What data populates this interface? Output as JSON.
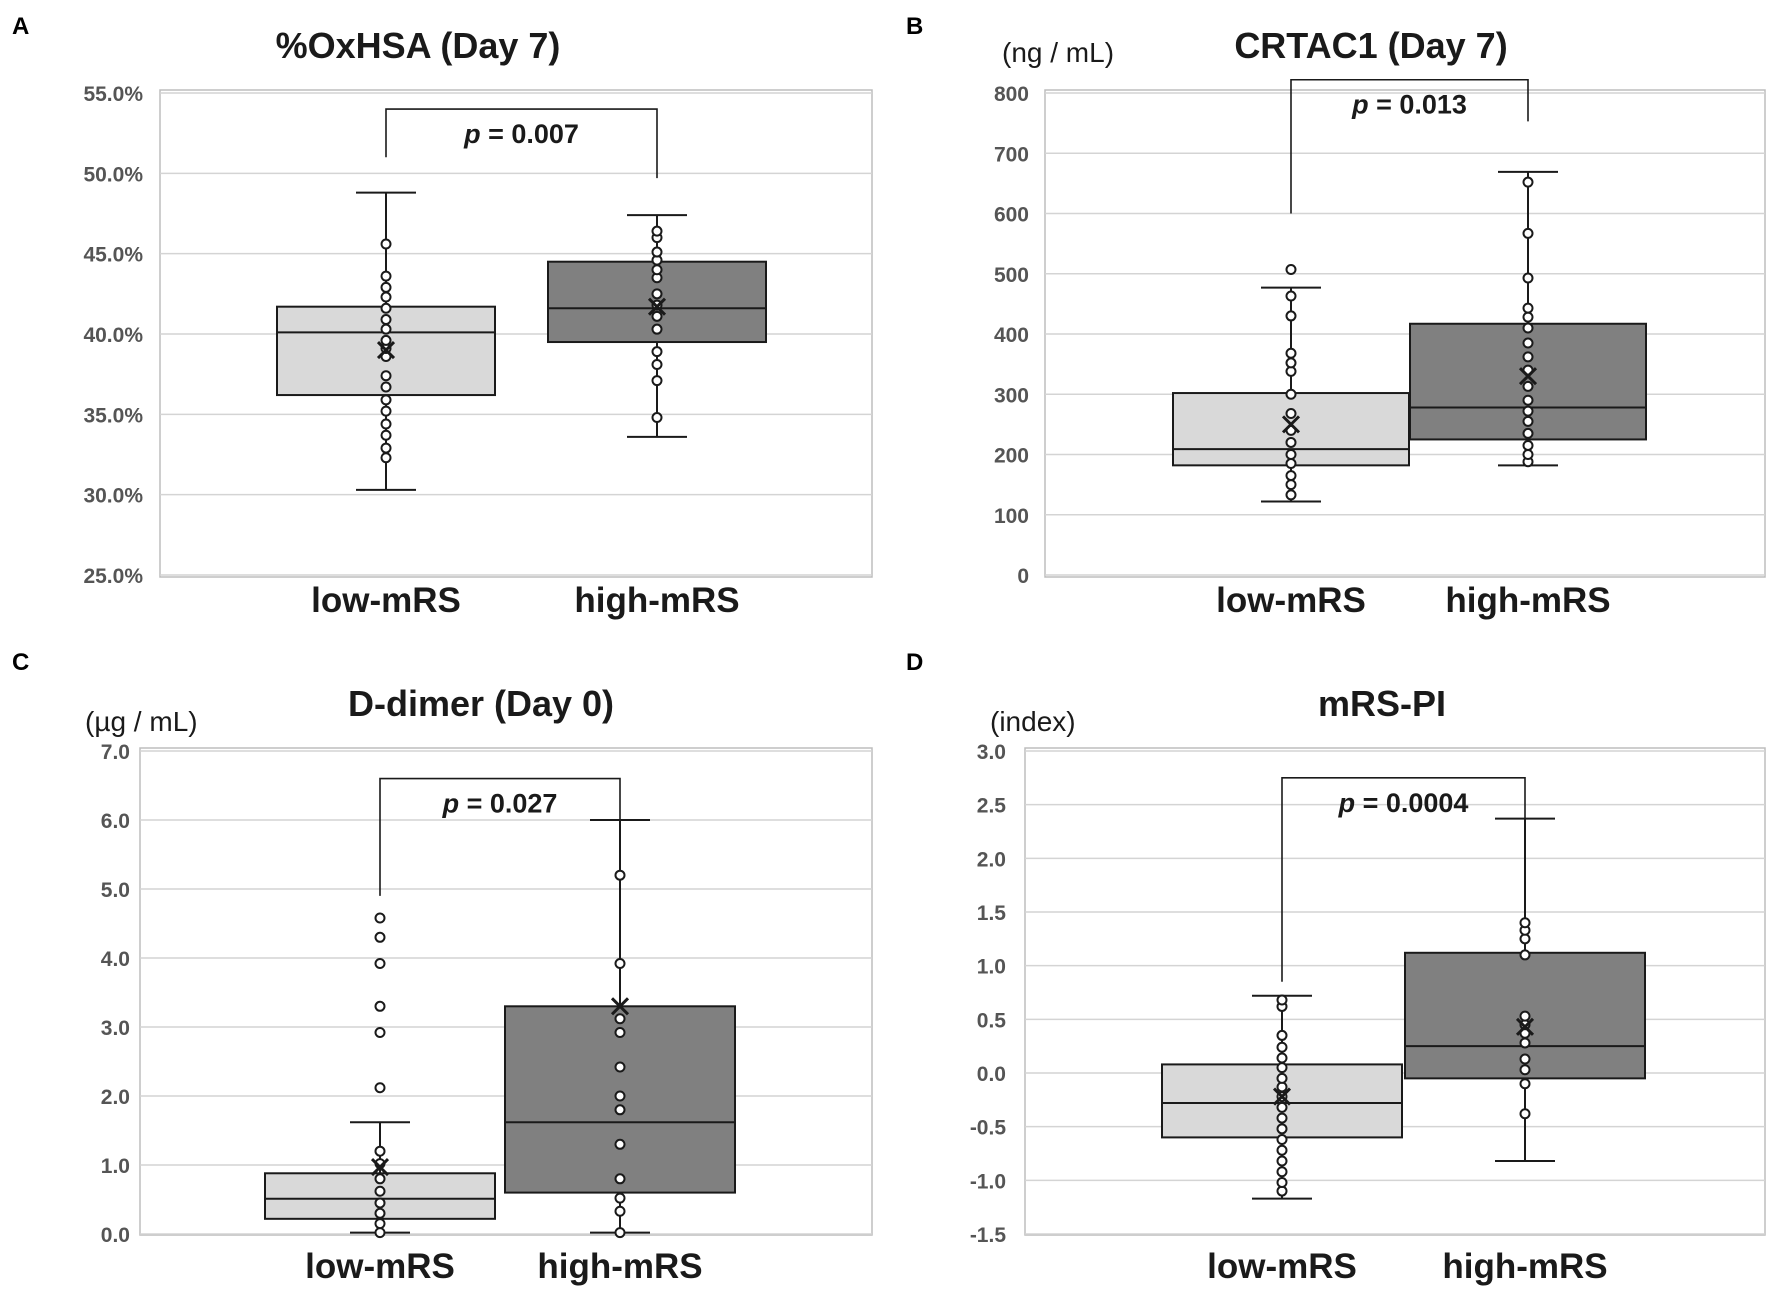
{
  "colors": {
    "low": "#d9d9d9",
    "high": "#808080",
    "ink": "#1a1a1a",
    "grid": "#d4d4d4",
    "tick": "#555555"
  },
  "chart_data": [
    {
      "panel": "A",
      "type": "box",
      "title": "%OxHSA (Day 7)",
      "unit": "",
      "categories": [
        "low-mRS",
        "high-mRS"
      ],
      "ylim": [
        25,
        55
      ],
      "ticks": [
        25,
        30,
        35,
        40,
        45,
        50,
        55
      ],
      "tick_labels": [
        "25.0%",
        "30.0%",
        "35.0%",
        "40.0%",
        "45.0%",
        "50.0%",
        "55.0%"
      ],
      "p_prefix": "p",
      "p_text": " = 0.007",
      "p_value": 0.007,
      "bracket": {
        "top": 54.0,
        "left_end": 51.0,
        "right_end": 49.7
      },
      "series": [
        {
          "name": "low-mRS",
          "min": 30.3,
          "q1": 36.2,
          "median": 40.1,
          "q3": 41.7,
          "max": 48.8,
          "mean": 39.0,
          "points": [
            32.3,
            32.9,
            33.7,
            34.4,
            35.2,
            35.9,
            36.7,
            37.4,
            38.6,
            39.1,
            39.6,
            40.3,
            40.9,
            41.6,
            42.3,
            42.9,
            43.6,
            45.6
          ]
        },
        {
          "name": "high-mRS",
          "min": 33.6,
          "q1": 39.5,
          "median": 41.6,
          "q3": 44.5,
          "max": 47.4,
          "mean": 41.7,
          "points": [
            34.8,
            37.1,
            38.1,
            38.9,
            40.3,
            41.1,
            41.8,
            42.5,
            43.5,
            44.0,
            44.6,
            45.1,
            46.0,
            46.4
          ]
        }
      ]
    },
    {
      "panel": "B",
      "type": "box",
      "title": "CRTAC1 (Day 7)",
      "unit": "(ng / mL)",
      "categories": [
        "low-mRS",
        "high-mRS"
      ],
      "ylim": [
        0,
        800
      ],
      "ticks": [
        0,
        100,
        200,
        300,
        400,
        500,
        600,
        700,
        800
      ],
      "tick_labels": [
        "0",
        "100",
        "200",
        "300",
        "400",
        "500",
        "600",
        "700",
        "800"
      ],
      "p_prefix": "p",
      "p_text": " = 0.013",
      "p_value": 0.013,
      "bracket": {
        "top": 822,
        "left_end": 600,
        "right_end": 753
      },
      "series": [
        {
          "name": "low-mRS",
          "min": 122,
          "q1": 182,
          "median": 209,
          "q3": 302,
          "max": 477,
          "mean": 250,
          "points": [
            133,
            150,
            165,
            185,
            200,
            220,
            240,
            268,
            300,
            338,
            352,
            368,
            430,
            463,
            507
          ]
        },
        {
          "name": "high-mRS",
          "min": 182,
          "q1": 225,
          "median": 278,
          "q3": 417,
          "max": 669,
          "mean": 330,
          "points": [
            188,
            200,
            215,
            235,
            255,
            272,
            290,
            313,
            340,
            362,
            385,
            410,
            428,
            443,
            493,
            567,
            652
          ]
        }
      ]
    },
    {
      "panel": "C",
      "type": "box",
      "title": "D-dimer (Day 0)",
      "unit": "(µg / mL)",
      "categories": [
        "low-mRS",
        "high-mRS"
      ],
      "ylim": [
        0,
        7
      ],
      "ticks": [
        0,
        1,
        2,
        3,
        4,
        5,
        6,
        7
      ],
      "tick_labels": [
        "0.0",
        "1.0",
        "2.0",
        "3.0",
        "4.0",
        "5.0",
        "6.0",
        "7.0"
      ],
      "p_prefix": "p",
      "p_text": " = 0.027",
      "p_value": 0.027,
      "bracket": {
        "top": 6.6,
        "left_end": 4.9,
        "right_end": 6.0
      },
      "series": [
        {
          "name": "low-mRS",
          "min": 0.02,
          "q1": 0.22,
          "median": 0.51,
          "q3": 0.88,
          "max": 1.62,
          "mean": 0.97,
          "points": [
            0.02,
            0.15,
            0.3,
            0.45,
            0.62,
            0.8,
            1.02,
            1.2,
            2.12,
            2.92,
            3.3,
            3.92,
            4.3,
            4.58
          ]
        },
        {
          "name": "high-mRS",
          "min": 0.02,
          "q1": 0.6,
          "median": 1.62,
          "q3": 3.3,
          "max": 6.0,
          "mean": 3.3,
          "points": [
            0.02,
            0.33,
            0.52,
            0.8,
            1.3,
            1.8,
            2.0,
            2.42,
            2.92,
            3.12,
            3.92,
            5.2
          ]
        }
      ]
    },
    {
      "panel": "D",
      "type": "box",
      "title": "mRS-PI",
      "unit": "(index)",
      "categories": [
        "low-mRS",
        "high-mRS"
      ],
      "ylim": [
        -1.5,
        3.0
      ],
      "ticks": [
        -1.5,
        -1.0,
        -0.5,
        0.0,
        0.5,
        1.0,
        1.5,
        2.0,
        2.5,
        3.0
      ],
      "tick_labels": [
        "-1.5",
        "-1.0",
        "-0.5",
        "0.0",
        "0.5",
        "1.0",
        "1.5",
        "2.0",
        "2.5",
        "3.0"
      ],
      "p_prefix": "p",
      "p_text": " = 0.0004",
      "p_value": 0.0004,
      "bracket": {
        "top": 2.75,
        "left_end": 0.85,
        "right_end": 2.37
      },
      "series": [
        {
          "name": "low-mRS",
          "min": -1.17,
          "q1": -0.6,
          "median": -0.28,
          "q3": 0.08,
          "max": 0.72,
          "mean": -0.22,
          "points": [
            -1.1,
            -1.02,
            -0.92,
            -0.82,
            -0.72,
            -0.62,
            -0.52,
            -0.42,
            -0.32,
            -0.22,
            -0.13,
            -0.05,
            0.05,
            0.14,
            0.24,
            0.35,
            0.62,
            0.68
          ]
        },
        {
          "name": "high-mRS",
          "min": -0.82,
          "q1": -0.05,
          "median": 0.25,
          "q3": 1.12,
          "max": 2.37,
          "mean": 0.43,
          "points": [
            -0.38,
            -0.1,
            0.03,
            0.13,
            0.28,
            0.37,
            0.45,
            0.53,
            1.1,
            1.25,
            1.33,
            1.4
          ]
        }
      ]
    }
  ]
}
